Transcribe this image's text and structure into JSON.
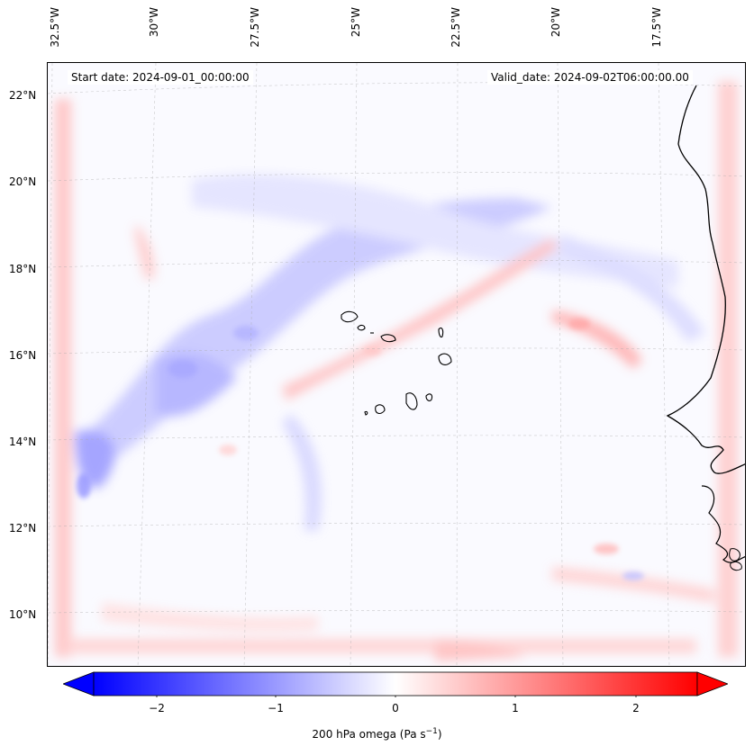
{
  "info": {
    "start_date": "Start date: 2024-09-01_00:00:00",
    "valid_date": "Valid_date: 2024-09-02T06:00:00.00"
  },
  "map": {
    "lon_labels": [
      "32.5°W",
      "30°W",
      "27.5°W",
      "25°W",
      "22.5°W",
      "20°W",
      "17.5°W"
    ],
    "lat_labels": [
      "22°N",
      "20°N",
      "18°N",
      "16°N",
      "14°N",
      "12°N",
      "10°N"
    ],
    "gridlines": true,
    "features": [
      "Cape Verde Islands",
      "West African coastline"
    ]
  },
  "colorbar": {
    "ticks": [
      "−2",
      "−1",
      "0",
      "1",
      "2"
    ],
    "range": [
      -2.6,
      2.6
    ],
    "extend": "both",
    "colormap": "bwr",
    "low_color": "#0000ff",
    "mid_color": "#ffffff",
    "high_color": "#ff0000",
    "label": "200 hPa omega (Pa s",
    "label_exp": "−1",
    "label_end": ")"
  }
}
